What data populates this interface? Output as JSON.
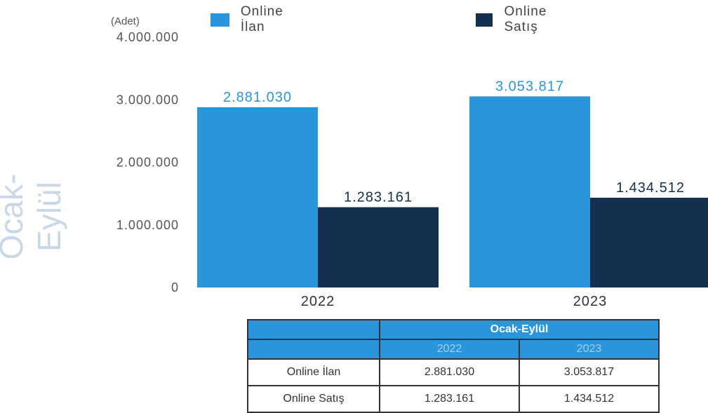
{
  "legend": {
    "items": [
      {
        "label": "Online İlan",
        "color": "#2b95dc"
      },
      {
        "label": "Online Satış",
        "color": "#14304f"
      }
    ]
  },
  "unit_label": "(Adet)",
  "side_title": "Ocak-Eylül",
  "chart_data": {
    "type": "bar",
    "categories": [
      "2022",
      "2023"
    ],
    "series": [
      {
        "name": "Online İlan",
        "values": [
          2881030,
          3053817
        ],
        "color": "#2b95dc"
      },
      {
        "name": "Online Satış",
        "values": [
          1283161,
          1434512
        ],
        "color": "#14304f"
      }
    ],
    "data_labels": [
      [
        "2.881.030",
        "3.053.817"
      ],
      [
        "1.283.161",
        "1.434.512"
      ]
    ],
    "ylabel": "(Adet)",
    "ylim": [
      0,
      4000000
    ],
    "yticks": [
      0,
      1000000,
      2000000,
      3000000,
      4000000
    ],
    "ytick_labels": [
      "0",
      "1.000.000",
      "2.000.000",
      "3.000.000",
      "4.000.000"
    ],
    "grid": false,
    "legend_position": "top"
  },
  "table": {
    "title": "Ocak-Eylül",
    "columns": [
      "2022",
      "2023"
    ],
    "rows": [
      {
        "label": "Online İlan",
        "values": [
          "2.881.030",
          "3.053.817"
        ]
      },
      {
        "label": "Online Satış",
        "values": [
          "1.283.161",
          "1.434.512"
        ]
      }
    ]
  }
}
